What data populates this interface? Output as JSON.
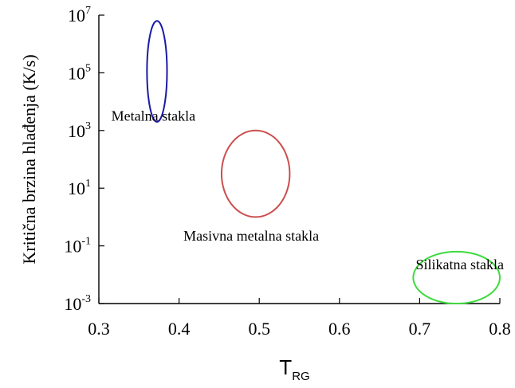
{
  "chart_data": {
    "type": "scatter",
    "title": "",
    "xlabel": {
      "main": "T",
      "sub": "RG"
    },
    "ylabel": "Kritična brzina hlađenja (K/s)",
    "xlim": [
      0.3,
      0.8
    ],
    "ylim_log10": [
      -3,
      7
    ],
    "y_scale": "log",
    "grid": false,
    "x_ticks": [
      {
        "value": 0.3,
        "label": "0.3"
      },
      {
        "value": 0.4,
        "label": "0.4"
      },
      {
        "value": 0.5,
        "label": "0.5"
      },
      {
        "value": 0.6,
        "label": "0.6"
      },
      {
        "value": 0.7,
        "label": "0.7"
      },
      {
        "value": 0.8,
        "label": "0.8"
      }
    ],
    "y_ticks": [
      {
        "exp": 7,
        "base": "10",
        "power": "7"
      },
      {
        "exp": 5,
        "base": "10",
        "power": "5"
      },
      {
        "exp": 3,
        "base": "10",
        "power": "3"
      },
      {
        "exp": 1,
        "base": "10",
        "power": "1"
      },
      {
        "exp": -1,
        "base": "10",
        "power": "-1"
      },
      {
        "exp": -3,
        "base": "10",
        "power": "-3"
      }
    ],
    "regions": [
      {
        "name": "Metalna stakla",
        "color": "#1a1aa6",
        "x_range": [
          0.36,
          0.385
        ],
        "log10_y_range": [
          3.3,
          6.8
        ],
        "label_x": 0.368,
        "label_log10_y": 3.5
      },
      {
        "name": "Masivna metalna stakla",
        "color": "#cc4e4e",
        "x_range": [
          0.453,
          0.538
        ],
        "log10_y_range": [
          0.0,
          3.0
        ],
        "label_x": 0.49,
        "label_log10_y": -0.65
      },
      {
        "name": "Silikatna stakla",
        "color": "#3fdb3f",
        "x_range": [
          0.692,
          0.8
        ],
        "log10_y_range": [
          -3.0,
          -1.2
        ],
        "label_x": 0.75,
        "label_log10_y": -1.65
      }
    ]
  }
}
